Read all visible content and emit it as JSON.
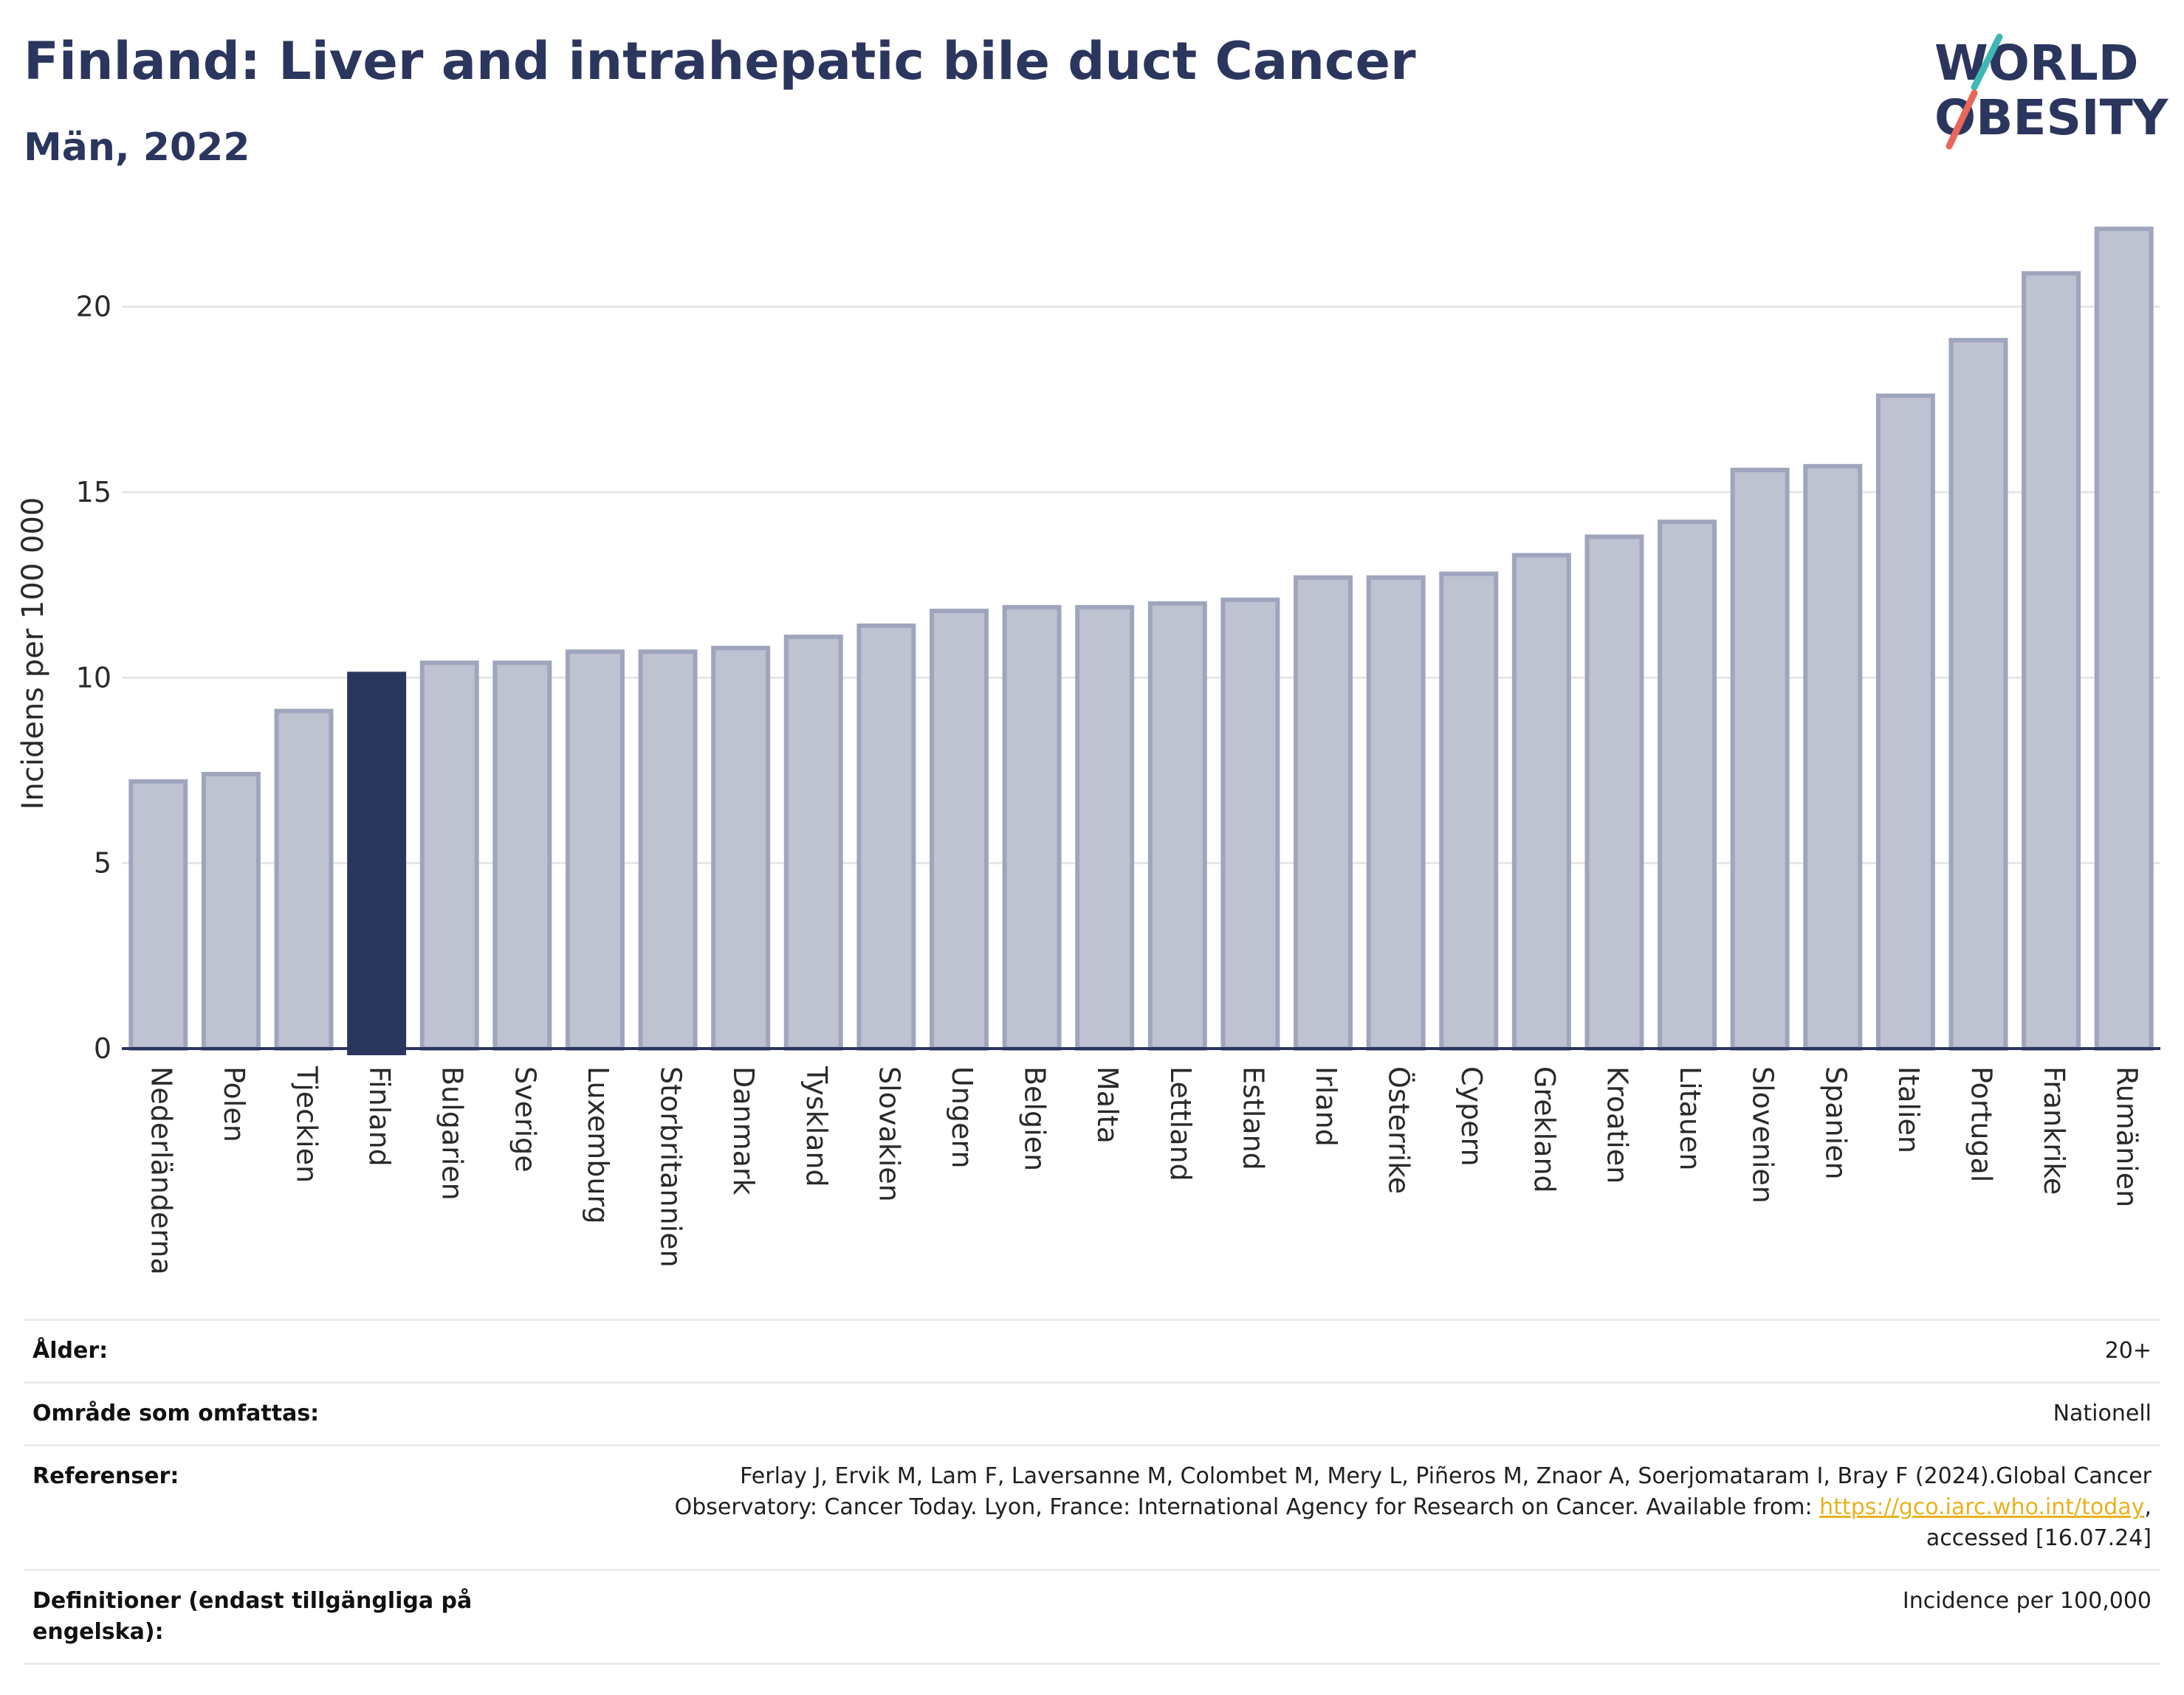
{
  "header": {
    "title": "Finland: Liver and intrahepatic bile duct Cancer",
    "subtitle": "Män, 2022"
  },
  "logo": {
    "line1": "WORLD",
    "line2": "OBESITY",
    "icon": "world-obesity-logo"
  },
  "colors": {
    "highlight": "#2b365e",
    "bar": "#bfc2d1",
    "bar_border": "#9fa5bd",
    "text": "#2b365e",
    "link": "#e8b21e"
  },
  "chart_data": {
    "type": "bar",
    "ylabel": "Incidens per 100 000",
    "xlabel": "",
    "ylim": [
      0,
      22.5
    ],
    "yticks": [
      0,
      5,
      10,
      15,
      20
    ],
    "grid": true,
    "highlight": "Finland",
    "categories": [
      "Nederländerna",
      "Polen",
      "Tjeckien",
      "Finland",
      "Bulgarien",
      "Sverige",
      "Luxemburg",
      "Storbritannien",
      "Danmark",
      "Tyskland",
      "Slovakien",
      "Ungern",
      "Belgien",
      "Malta",
      "Lettland",
      "Estland",
      "Irland",
      "Österrike",
      "Cypern",
      "Grekland",
      "Kroatien",
      "Litauen",
      "Slovenien",
      "Spanien",
      "Italien",
      "Portugal",
      "Frankrike",
      "Rumänien"
    ],
    "values": [
      7.2,
      7.4,
      9.1,
      10.1,
      10.4,
      10.4,
      10.7,
      10.7,
      10.8,
      11.1,
      11.4,
      11.8,
      11.9,
      11.9,
      12.0,
      12.1,
      12.7,
      12.7,
      12.8,
      13.3,
      13.8,
      14.2,
      15.6,
      15.7,
      17.6,
      19.1,
      20.9,
      22.1
    ]
  },
  "meta": {
    "rows": [
      {
        "label": "Ålder:",
        "value": "20+"
      },
      {
        "label": "Område som omfattas:",
        "value": "Nationell"
      },
      {
        "label": "Referenser:",
        "value_line1": "Ferlay J, Ervik M, Lam F, Laversanne M, Colombet M, Mery L, Piñeros M, Znaor A, Soerjomataram I, Bray F (2024).Global Cancer",
        "value_line2_pre": "Observatory: Cancer Today. Lyon, France: International Agency for Research on Cancer. Available from: ",
        "link": "https://gco.iarc.who.int/today",
        "value_line2_post": ",",
        "value_line3": "accessed [16.07.24]"
      },
      {
        "label": "Definitioner (endast tillgängliga på engelska):",
        "value": "Incidence per 100,000"
      }
    ]
  }
}
